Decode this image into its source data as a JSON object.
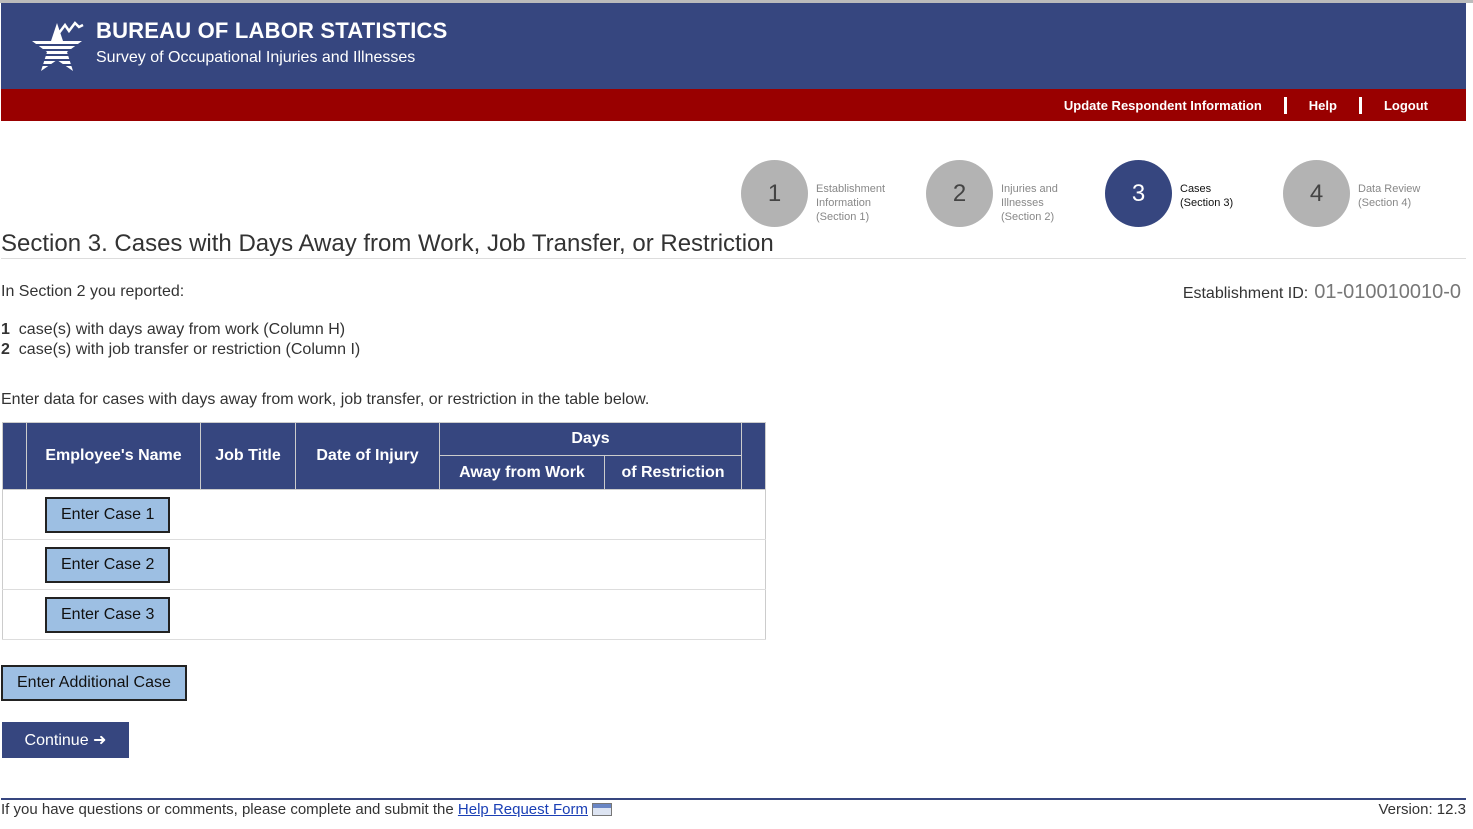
{
  "header": {
    "title": "BUREAU OF LABOR STATISTICS",
    "subtitle": "Survey of Occupational Injuries and Illnesses"
  },
  "nav": {
    "update": "Update Respondent Information",
    "help": "Help",
    "logout": "Logout"
  },
  "steps": [
    {
      "number": "1",
      "label": "Establishment\nInformation\n(Section 1)",
      "active": false
    },
    {
      "number": "2",
      "label": "Injuries and\nIllnesses\n(Section 2)",
      "active": false
    },
    {
      "number": "3",
      "label": "Cases\n(Section 3)",
      "active": true
    },
    {
      "number": "4",
      "label": "Data Review\n(Section 4)",
      "active": false
    }
  ],
  "page_title": "Section 3. Cases with Days Away from Work, Job Transfer, or Restriction",
  "reported_intro": "In Section 2 you reported:",
  "establishment": {
    "label": "Establishment ID:",
    "value": "01-010010010-0"
  },
  "reported": [
    {
      "count": "1",
      "text": "case(s) with days away from work (Column H)"
    },
    {
      "count": "2",
      "text": "case(s) with job transfer or restriction (Column I)"
    }
  ],
  "instructions": "Enter data for cases with days away from work, job transfer, or restriction in the table below.",
  "table": {
    "headers": {
      "name": "Employee's Name",
      "job": "Job Title",
      "date": "Date of Injury",
      "days": "Days",
      "away": "Away from Work",
      "restriction": "of Restriction"
    },
    "rows": [
      {
        "button": "Enter Case 1"
      },
      {
        "button": "Enter Case 2"
      },
      {
        "button": "Enter Case 3"
      }
    ]
  },
  "buttons": {
    "additional": "Enter Additional Case",
    "continue": "Continue"
  },
  "footer": {
    "text": "If you have questions or comments, please complete and submit the ",
    "link": "Help Request Form",
    "version": "Version: 12.3"
  },
  "colors": {
    "brand_blue": "#36467f",
    "brand_red": "#990000",
    "button_light": "#9dbfe3"
  }
}
